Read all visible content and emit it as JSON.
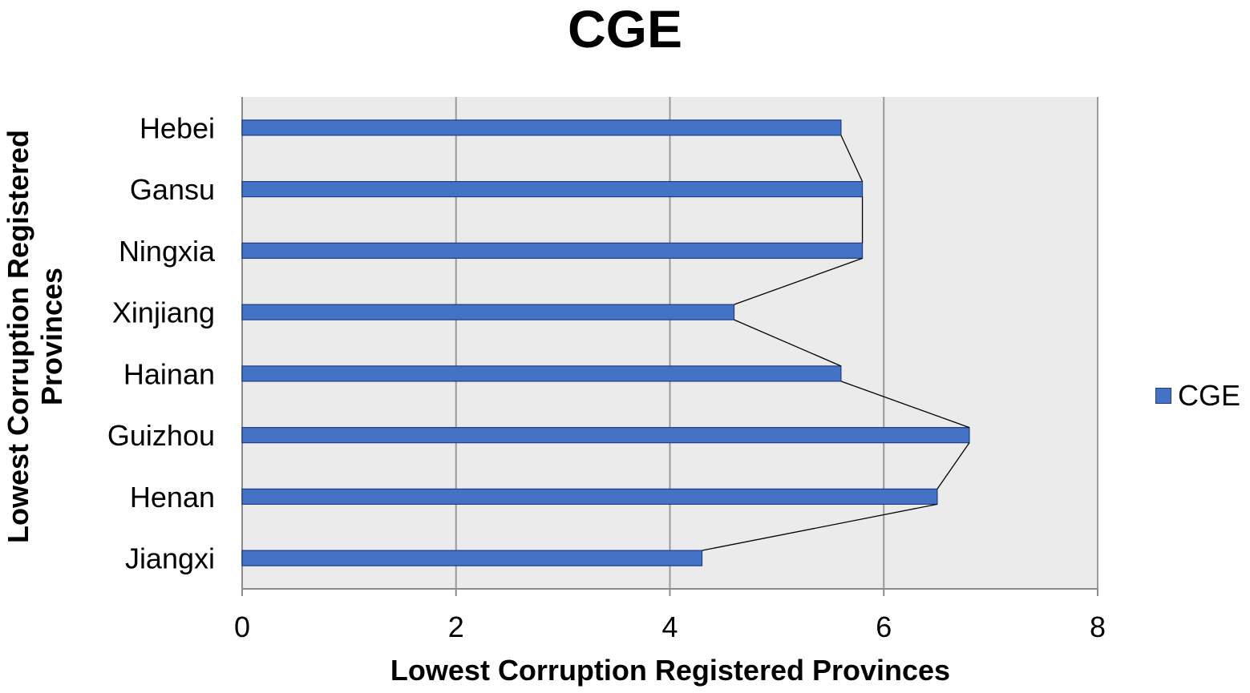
{
  "chart_data": {
    "type": "bar",
    "orientation": "horizontal",
    "title": "CGE",
    "xlabel": "Lowest Corruption Registered Provinces",
    "ylabel": "Lowest Corruption Registered Provinces",
    "categories": [
      "Hebei",
      "Gansu",
      "Ningxia",
      "Xinjiang",
      "Hainan",
      "Guizhou",
      "Henan",
      "Jiangxi"
    ],
    "series": [
      {
        "name": "CGE",
        "values": [
          5.6,
          5.8,
          5.8,
          4.6,
          5.6,
          6.8,
          6.5,
          4.3
        ]
      }
    ],
    "xlim": [
      0,
      8
    ],
    "xticks": [
      "0",
      "2",
      "4",
      "6",
      "8"
    ],
    "grid": "vertical",
    "legend": "right",
    "connector_line": true,
    "colors": {
      "bar": "#4472c4",
      "bar_border": "#1f3c88",
      "plot_bg": "#ebebeb",
      "grid": "#9a9a9a"
    }
  }
}
